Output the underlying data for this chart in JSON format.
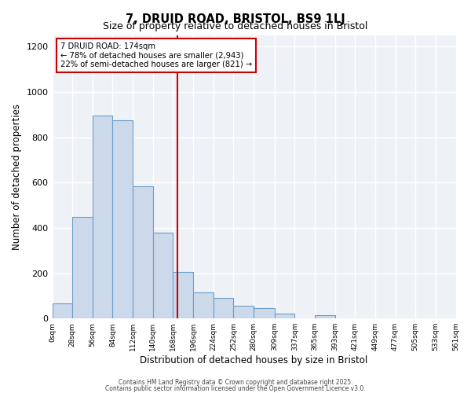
{
  "title": "7, DRUID ROAD, BRISTOL, BS9 1LJ",
  "subtitle": "Size of property relative to detached houses in Bristol",
  "xlabel": "Distribution of detached houses by size in Bristol",
  "ylabel": "Number of detached properties",
  "bar_values": [
    65,
    450,
    895,
    875,
    585,
    380,
    205,
    115,
    90,
    55,
    45,
    20,
    0,
    15,
    0,
    0,
    0,
    0,
    0,
    0
  ],
  "bin_edges": [
    0,
    28,
    56,
    84,
    112,
    140,
    168,
    196,
    224,
    252,
    280,
    309,
    337,
    365,
    393,
    421,
    449,
    477,
    505,
    533,
    561
  ],
  "tick_labels": [
    "0sqm",
    "28sqm",
    "56sqm",
    "84sqm",
    "112sqm",
    "140sqm",
    "168sqm",
    "196sqm",
    "224sqm",
    "252sqm",
    "280sqm",
    "309sqm",
    "337sqm",
    "365sqm",
    "393sqm",
    "421sqm",
    "449sqm",
    "477sqm",
    "505sqm",
    "533sqm",
    "561sqm"
  ],
  "bar_color": "#ccd9ea",
  "bar_edge_color": "#6b9ec8",
  "ylim": [
    0,
    1250
  ],
  "yticks": [
    0,
    200,
    400,
    600,
    800,
    1000,
    1200
  ],
  "vline_x": 174,
  "vline_color": "#cc0000",
  "annotation_title": "7 DRUID ROAD: 174sqm",
  "annotation_line1": "← 78% of detached houses are smaller (2,943)",
  "annotation_line2": "22% of semi-detached houses are larger (821) →",
  "footer1": "Contains HM Land Registry data © Crown copyright and database right 2025.",
  "footer2": "Contains public sector information licensed under the Open Government Licence v3.0.",
  "background_color": "#eef2f7",
  "grid_color": "#ffffff",
  "fig_bg_color": "#ffffff"
}
